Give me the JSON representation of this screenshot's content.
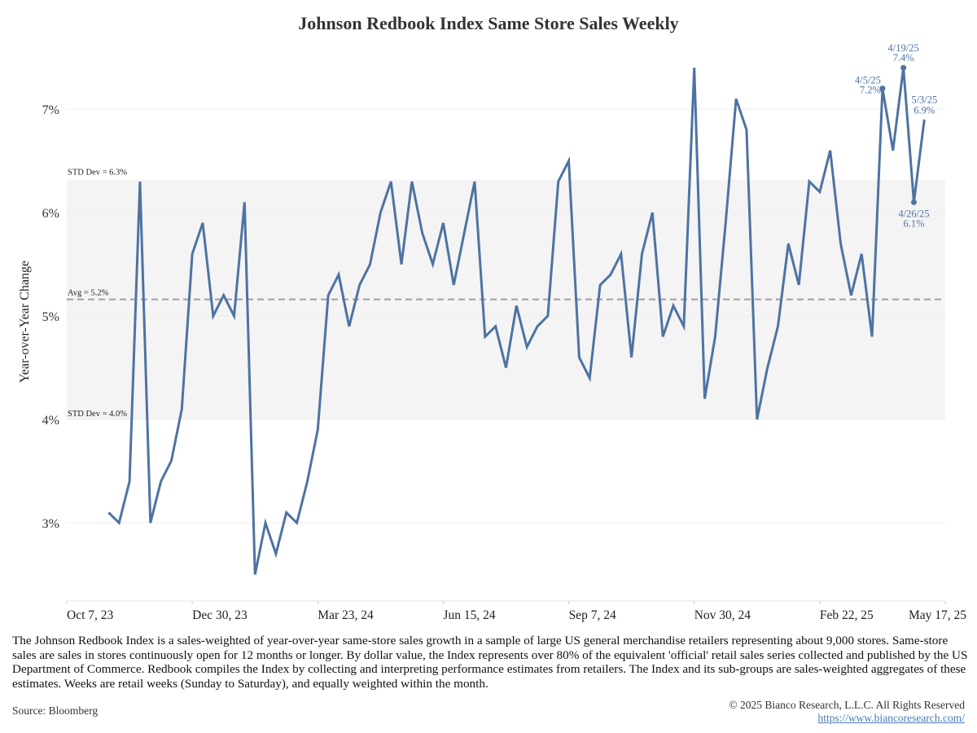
{
  "chart_data": {
    "type": "line",
    "title": "Johnson Redbook Index Same Store Sales Weekly",
    "ylabel": "Year-over-Year Change",
    "xlabel": "",
    "ylim": [
      2.25,
      7.75
    ],
    "yticks": [
      3,
      4,
      5,
      6,
      7
    ],
    "ytick_labels": [
      "3%",
      "4%",
      "5%",
      "6%",
      "7%"
    ],
    "xlim": [
      "2023-10-07",
      "2025-05-17"
    ],
    "xticks": [
      "2023-10-07",
      "2023-12-30",
      "2024-03-23",
      "2024-06-15",
      "2024-09-07",
      "2024-11-30",
      "2025-02-22",
      "2025-05-17"
    ],
    "xtick_labels": [
      "Oct 7, 23",
      "Dec 30, 23",
      "Mar 23, 24",
      "Jun 15, 24",
      "Sep 7, 24",
      "Nov 30, 24",
      "Feb 22, 25",
      "May 17, 25"
    ],
    "grid": "horizontal",
    "line_color": "#4e73a2",
    "band_color": "#f4f4f4",
    "x": [
      "2023-11-04",
      "2023-11-11",
      "2023-11-18",
      "2023-11-25",
      "2023-12-02",
      "2023-12-09",
      "2023-12-16",
      "2023-12-23",
      "2023-12-30",
      "2024-01-06",
      "2024-01-13",
      "2024-01-20",
      "2024-01-27",
      "2024-02-03",
      "2024-02-10",
      "2024-02-17",
      "2024-02-24",
      "2024-03-02",
      "2024-03-09",
      "2024-03-16",
      "2024-03-23",
      "2024-03-30",
      "2024-04-06",
      "2024-04-13",
      "2024-04-20",
      "2024-04-27",
      "2024-05-04",
      "2024-05-11",
      "2024-05-18",
      "2024-05-25",
      "2024-06-01",
      "2024-06-08",
      "2024-06-15",
      "2024-06-22",
      "2024-06-29",
      "2024-07-06",
      "2024-07-13",
      "2024-07-20",
      "2024-07-27",
      "2024-08-03",
      "2024-08-10",
      "2024-08-17",
      "2024-08-24",
      "2024-08-31",
      "2024-09-07",
      "2024-09-14",
      "2024-09-21",
      "2024-09-28",
      "2024-10-05",
      "2024-10-12",
      "2024-10-19",
      "2024-10-26",
      "2024-11-02",
      "2024-11-09",
      "2024-11-16",
      "2024-11-23",
      "2024-11-30",
      "2024-12-07",
      "2024-12-14",
      "2024-12-21",
      "2024-12-28",
      "2025-01-04",
      "2025-01-11",
      "2025-01-18",
      "2025-01-25",
      "2025-02-01",
      "2025-02-08",
      "2025-02-15",
      "2025-02-22",
      "2025-03-01",
      "2025-03-08",
      "2025-03-15",
      "2025-03-22",
      "2025-03-29",
      "2025-04-05",
      "2025-04-12",
      "2025-04-19",
      "2025-04-26",
      "2025-05-03"
    ],
    "values": [
      3.1,
      3.0,
      3.4,
      6.3,
      3.0,
      3.4,
      3.6,
      4.1,
      5.6,
      5.9,
      5.0,
      5.2,
      5.0,
      6.1,
      2.5,
      3.0,
      2.7,
      3.1,
      3.0,
      3.4,
      3.9,
      5.2,
      5.4,
      4.9,
      5.3,
      5.5,
      6.0,
      6.3,
      5.5,
      6.3,
      5.8,
      5.5,
      5.9,
      5.3,
      5.8,
      6.3,
      4.8,
      4.9,
      4.5,
      5.1,
      4.7,
      4.9,
      5.0,
      6.3,
      6.5,
      4.6,
      4.4,
      5.3,
      5.4,
      5.6,
      4.6,
      5.6,
      6.0,
      4.8,
      5.1,
      4.9,
      7.4,
      4.2,
      4.8,
      5.9,
      7.1,
      6.8,
      4.0,
      4.5,
      4.9,
      5.7,
      5.3,
      6.3,
      6.2,
      6.6,
      5.7,
      5.2,
      5.6,
      4.8,
      7.2,
      6.6,
      7.4,
      6.1,
      6.9
    ],
    "reference_lines": [
      {
        "label": "Avg = 5.2%",
        "value": 5.16,
        "style": "dashed"
      },
      {
        "label": "STD Dev = 6.3%",
        "value": 6.32,
        "style": "band-top"
      },
      {
        "label": "STD Dev = 4.0%",
        "value": 4.0,
        "style": "band-bottom"
      }
    ],
    "annotations": [
      {
        "date": "2025-04-05",
        "value": 7.2,
        "label_date": "4/5/25",
        "label_value": "7.2%",
        "dot": true,
        "pos": "left"
      },
      {
        "date": "2025-04-19",
        "value": 7.4,
        "label_date": "4/19/25",
        "label_value": "7.4%",
        "dot": true,
        "pos": "top"
      },
      {
        "date": "2025-04-26",
        "value": 6.1,
        "label_date": "4/26/25",
        "label_value": "6.1%",
        "dot": true,
        "pos": "bottom"
      },
      {
        "date": "2025-05-03",
        "value": 6.9,
        "label_date": "5/3/25",
        "label_value": "6.9%",
        "dot": false,
        "pos": "top"
      }
    ]
  },
  "footer": {
    "description": "The Johnson Redbook Index is a sales-weighted of year-over-year same-store sales growth in a sample of large US general merchandise retailers representing about 9,000 stores. Same-store sales are sales in stores continuously open for 12 months or longer. By dollar value, the Index represents over 80% of the equivalent 'official' retail sales series collected and published by the US Department of Commerce. Redbook compiles the Index by collecting and interpreting performance estimates from retailers. The Index and its sub-groups are sales-weighted aggregates of these estimates. Weeks are retail weeks (Sunday to Saturday), and equally weighted within the month.",
    "source": "Source: Bloomberg",
    "copyright": "© 2025 Bianco Research, L.L.C. All Rights Reserved",
    "url": "https://www.biancoresearch.com/"
  }
}
